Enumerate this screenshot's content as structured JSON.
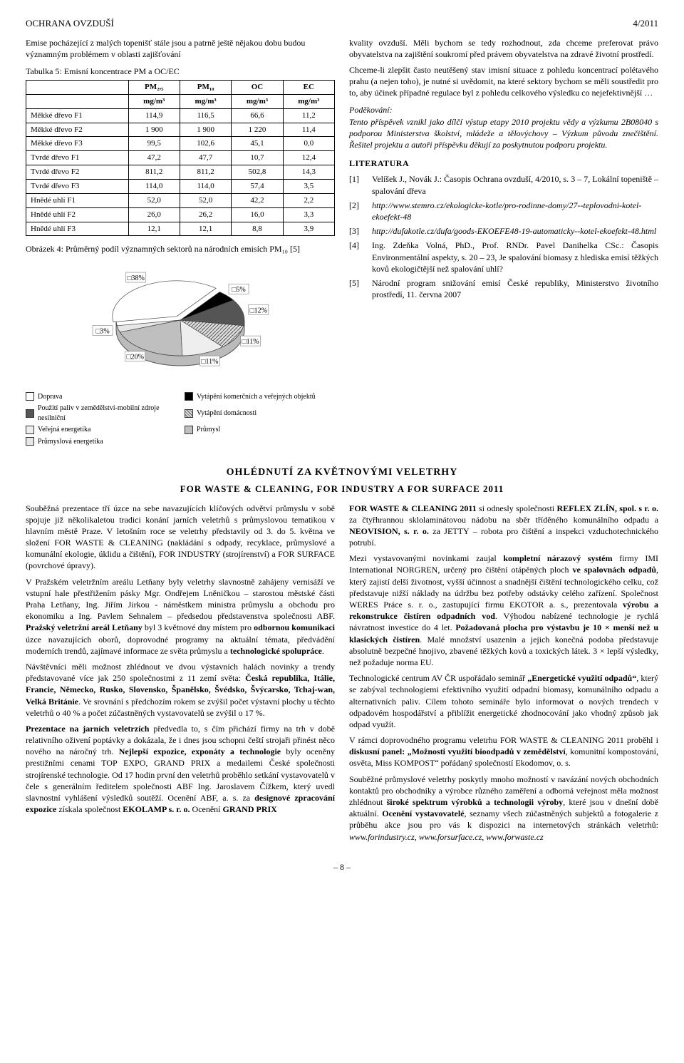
{
  "header": {
    "left": "OCHRANA OVZDUŠÍ",
    "right": "4/2011"
  },
  "left": {
    "intro": "Emise pocházející z malých topenišť stále jsou a patrně ještě nějakou dobu budou významným problémem v oblasti zajišťování",
    "table": {
      "caption": "Tabulka 5: Emisní koncentrace PM a OC/EC",
      "head_row1": [
        "",
        "PM₂,₅",
        "PM₁₀",
        "OC",
        "EC"
      ],
      "head_row2": [
        "",
        "mg/m³",
        "mg/m³",
        "mg/m³",
        "mg/m³"
      ],
      "rows": [
        [
          "Měkké dřevo F1",
          "114,9",
          "116,5",
          "66,6",
          "11,2"
        ],
        [
          "Měkké dřevo F2",
          "1 900",
          "1 900",
          "1 220",
          "11,4"
        ],
        [
          "Měkké dřevo F3",
          "99,5",
          "102,6",
          "45,1",
          "0,0"
        ],
        [
          "Tvrdé dřevo F1",
          "47,2",
          "47,7",
          "10,7",
          "12,4"
        ],
        [
          "Tvrdé dřevo F2",
          "811,2",
          "811,2",
          "502,8",
          "14,3"
        ],
        [
          "Tvrdé dřevo F3",
          "114,0",
          "114,0",
          "57,4",
          "3,5"
        ],
        [
          "Hnědé uhlí F1",
          "52,0",
          "52,0",
          "42,2",
          "2,2"
        ],
        [
          "Hnědé uhlí F2",
          "26,0",
          "26,2",
          "16,0",
          "3,3"
        ],
        [
          "Hnědé uhlí F3",
          "12,1",
          "12,1",
          "8,8",
          "3,9"
        ]
      ]
    },
    "figure": {
      "caption": "Obrázek 4: Průměrný podíl významných sektorů na národních emisích PM₁₀ [5]",
      "type": "pie-3d-exploded",
      "slices": [
        {
          "label": "38%",
          "value": 38,
          "color": "#ffffff",
          "legend": "Doprava"
        },
        {
          "label": "5%",
          "value": 5,
          "color": "#000000",
          "legend": "Vytápění komerčních a veřejných objektů"
        },
        {
          "label": "12%",
          "value": 12,
          "color": "#555555",
          "legend": "Použití paliv v zemědělství-mobilní zdroje nesilniční"
        },
        {
          "label": "11%",
          "value": 11,
          "color": "#cccccc",
          "hatch": true,
          "legend": "Vytápění domácnosti"
        },
        {
          "label": "11%",
          "value": 11,
          "color": "#eeeeee",
          "legend": "Veřejná energetika"
        },
        {
          "label": "20%",
          "value": 20,
          "color": "#bfbfbf",
          "legend": "Průmysl"
        },
        {
          "label": "3%",
          "value": 3,
          "color": "#e6e6e6",
          "legend": "Průmyslová energetika"
        }
      ],
      "background_color": "#ffffff",
      "label_fontsize": 10
    }
  },
  "right": {
    "para1": "kvality ovzduší. Měli bychom se tedy rozhodnout, zda chceme preferovat právo obyvatelstva na zajištění soukromí před právem obyvatelstva na zdravé životní prostředí.",
    "para2": "Chceme-li zlepšit často neutěšený stav imisní situace z pohledu koncentrací polétavého prahu (a nejen toho), je nutné si uvědomit, na které sektory bychom se měli soustředit pro to, aby účinek případné regulace byl z pohledu celkového výsledku co nejefektivnější …",
    "thanks_head": "Poděkování:",
    "thanks_body": "Tento příspěvek vznikl jako dílčí výstup etapy 2010 projektu vědy a výzkumu 2B08040 s podporou Ministerstva školství, mládeže a tělovýchovy – Výzkum původu znečištění. Řešitel projektu a autoři příspěvku děkují za poskytnutou podporu projektu.",
    "lit_head": "LITERATURA",
    "refs": [
      {
        "n": "[1]",
        "t": "Velíšek J., Novák J.: Časopis Ochrana ovzduší, 4/2010, s. 3 – 7, Lokální topeniště – spalování dřeva"
      },
      {
        "n": "[2]",
        "t": "http://www.stemro.cz/ekologicke-kotle/pro-rodinne-domy/27--teplovodni-kotel-ekoefekt-48",
        "ital": true
      },
      {
        "n": "[3]",
        "t": "http://dufakotle.cz/dufa/goods-EKOEFE48-19-automaticky--kotel-ekoefekt-48.html",
        "ital": true
      },
      {
        "n": "[4]",
        "t": "Ing. Zdeňka Volná, PhD., Prof. RNDr. Pavel Danihelka CSc.: Časopis Environmentální aspekty, s. 20 – 23, Je spalování biomasy z hlediska emisí těžkých kovů ekologičtější než spalování uhlí?"
      },
      {
        "n": "[5]",
        "t": "Národní program snižování emisí České republiky, Ministerstvo životního prostředí, 11. června 2007"
      }
    ]
  },
  "fair": {
    "title": "OHLÉDNUTÍ ZA KVĚTNOVÝMI VELETRHY",
    "sub": "FOR WASTE & CLEANING, FOR INDUSTRY A FOR SURFACE 2011",
    "left_html": "Souběžná prezentace tří úzce na sebe navazujících klíčových odvětví průmyslu v sobě spojuje již několikaletou tradici konání jarních veletrhů s průmyslovou tematikou v hlavním městě Praze. V letošním roce se veletrhy představily od 3. do 5. května ve složení FOR WASTE & CLEANING (nakládání s odpady, recyklace, průmyslové a komunální ekologie, úklidu a čištění), FOR INDUSTRY (strojírenství) a FOR SURFACE (povrchové úpravy).|V Pražském veletržním areálu Letňany byly veletrhy slavnostně zahájeny vernisáží ve vstupní hale přestřižením pásky Mgr. Ondřejem Lněničkou – starostou městské části Praha Letňany, Ing. Jiřím Jirkou - náměstkem ministra průmyslu a obchodu pro ekonomiku a Ing. Pavlem Sehnalem – předsedou představenstva společnosti ABF. <b>Pražský veletržní areál Letňany</b> byl 3 květnové dny místem pro <b>odbornou komunikaci</b> úzce navazujících oborů, doprovodné programy na aktuální témata, předvádění moderních trendů, zajímavé informace ze světa průmyslu a <b>technologické spolupráce</b>.|Návštěvníci měli možnost zhlédnout ve dvou výstavních halách novinky a trendy představované více jak 250 společnostmi z 11 zemí světa: <b>Česká republika, Itálie, Francie, Německo, Rusko, Slovensko, Španělsko, Švédsko, Švýcarsko, Tchaj-wan, Velká Británie</b>. Ve srovnání s předchozím rokem se zvýšil počet výstavní plochy u těchto veletrhů o 40 % a počet zúčastněných vystavovatelů se zvýšil o 17 %.|<b>Prezentace na jarních veletrzích</b> předvedla to, s čím přichází firmy na trh v době relativního oživení poptávky a dokázala, že i dnes jsou schopni čeští strojaři přinést něco nového na náročný trh. <b>Nejlepší expozice, exponáty a technologie</b> byly oceněny prestižními cenami TOP EXPO, GRAND PRIX a medailemi České společnosti strojírenské technologie. Od 17 hodin první den veletrhů proběhlo setkání vystavovatelů v čele s generálním ředitelem společnosti ABF Ing. Jaroslavem Čížkem, který uvedl slavnostní vyhlášení výsledků soutěží. Ocenění ABF, a. s. za <b>designové zpracování expozice</b> získala společnost <b>EKOLAMP s. r. o.</b> Ocenění <b>GRAND PRIX</b>",
    "right_html": "<b>FOR WASTE & CLEANING 2011</b> si odnesly společnosti <b>REFLEX ZLÍN, spol. s r. o.</b> za čtyřhrannou sklolaminátovou nádobu na sběr tříděného komunálního odpadu a <b>NEOVISION, s. r. o.</b> za JETTY – robota pro čištění a inspekci vzduchotechnického potrubí.|Mezi vystavovanými novinkami zaujal <b>kompletní nárazový systém</b> firmy IMI International NORGREN, určený pro čištění otápěných ploch <b>ve spalovnách odpadů</b>, který zajistí delší životnost, vyšší účinnost a snadnější čištění technologického celku, což představuje nižší náklady na údržbu bez potřeby odstávky celého zařízení. Společnost WERES Práce s. r. o., zastupující firmu EKOTOR a. s., prezentovala <b>výrobu a rekonstrukce čistíren odpadních vod</b>. Výhodou nabízené technologie je rychlá návratnost investice do 4 let. <b>Požadovaná plocha pro výstavbu je 10 × menší než u klasických čistíren</b>. Malé množství usazenin a jejich konečná podoba představuje absolutně bezpečné hnojivo, zbavené těžkých kovů a toxických látek. 3 × lepší výsledky, než požaduje norma EU.|Technologické centrum AV ČR uspořádalo seminář <b>„Energetické využití odpadů“</b>, který se zabýval technologiemi efektivního využití odpadní biomasy, komunálního odpadu a alternativních paliv. Cílem tohoto semináře bylo informovat o nových trendech v odpadovém hospodářství a přiblížit energetické zhodnocování jako vhodný způsob jak odpad využít.|V rámci doprovodného programu veletrhu FOR WASTE & CLEANING 2011 proběhl i <b>diskusní panel: „Možnosti využití bioodpadů v zemědělství</b>, komunitní kompostování, osvěta, Miss KOMPOST“ pořádaný společností Ekodomov, o. s.|Souběžné průmyslové veletrhy poskytly mnoho možností v navázání nových obchodních kontaktů pro obchodníky a výrobce různého zaměření a odborná veřejnost měla možnost zhlédnout <b>široké spektrum výrobků a technologii výroby</b>, které jsou v dnešní době aktuální. <b>Ocenění vystavovatelé</b>, seznamy všech zúčastněných subjektů a fotogalerie z průběhu akce jsou pro vás k dispozici na internetových stránkách veletrhů: <i>www.forindustry.cz</i>, <i>www.forsurface.cz</i>, <i>www.forwaste.cz</i>"
  },
  "footer": "– 8 –"
}
